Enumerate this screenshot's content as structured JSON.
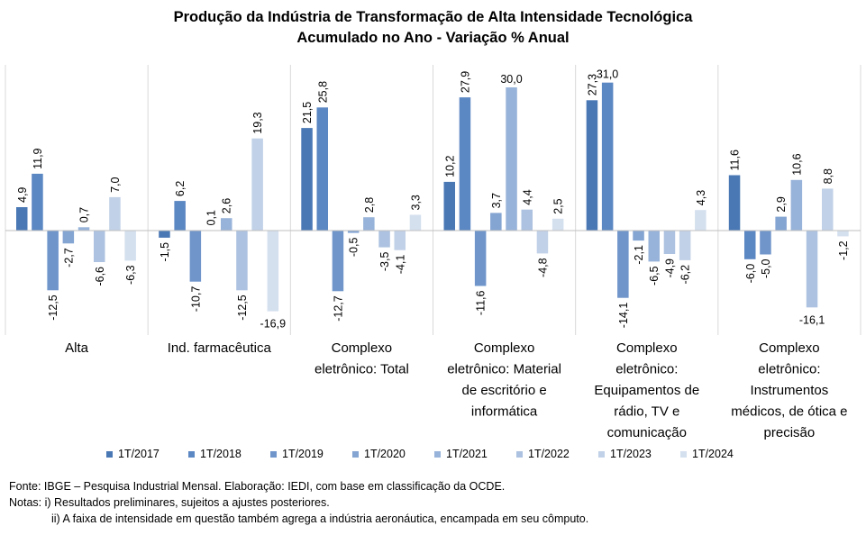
{
  "chart_data": {
    "type": "bar",
    "title": "Produção da Indústria de Transformação de Alta Intensidade Tecnológica",
    "subtitle": "Acumulado no Ano - Variação % Anual",
    "categories": [
      "Alta",
      "Ind. farmacêutica",
      "Complexo eletrônico: Total",
      "Complexo eletrônico: Material de escritório e informática",
      "Complexo eletrônico: Equipamentos de rádio, TV e comunicação",
      "Complexo eletrônico: Instrumentos médicos, de ótica e precisão"
    ],
    "category_label_lines": [
      [
        "Alta"
      ],
      [
        "Ind. farmacêutica"
      ],
      [
        "Complexo",
        "eletrônico: Total"
      ],
      [
        "Complexo",
        "eletrônico: Material",
        "de escritório e",
        "informática"
      ],
      [
        "Complexo",
        "eletrônico:",
        "Equipamentos de",
        "rádio, TV e",
        "comunicação"
      ],
      [
        "Complexo",
        "eletrônico:",
        "Instrumentos",
        "médicos, de ótica e",
        "precisão"
      ]
    ],
    "series": [
      {
        "name": "1T/2017",
        "color": "#4a78b5",
        "values": [
          4.9,
          -1.5,
          21.5,
          10.2,
          27.3,
          11.6
        ],
        "labels": [
          "4,9",
          "-1,5",
          "21,5",
          "10,2",
          "27,3",
          "11,6"
        ]
      },
      {
        "name": "1T/2018",
        "color": "#5b87c3",
        "values": [
          11.9,
          6.2,
          25.8,
          27.9,
          31.0,
          -6.0
        ],
        "labels": [
          "11,9",
          "6,2",
          "25,8",
          "27,9",
          "31,0",
          "-6,0"
        ]
      },
      {
        "name": "1T/2019",
        "color": "#6f95cb",
        "values": [
          -12.5,
          -10.7,
          -12.7,
          -11.6,
          -14.1,
          -5.0
        ],
        "labels": [
          "-12,5",
          "-10,7",
          "-12,7",
          "-11,6",
          "-14,1",
          "-5,0"
        ]
      },
      {
        "name": "1T/2020",
        "color": "#84a4d2",
        "values": [
          -2.7,
          0.1,
          -0.5,
          3.7,
          -2.1,
          2.9
        ],
        "labels": [
          "-2,7",
          "0,1",
          "-0,5",
          "3,7",
          "-2,1",
          "2,9"
        ]
      },
      {
        "name": "1T/2021",
        "color": "#98b3d9",
        "values": [
          0.7,
          2.6,
          2.8,
          30.0,
          -6.5,
          10.6
        ],
        "labels": [
          "0,7",
          "2,6",
          "2,8",
          "30,0",
          "-6,5",
          "10,6"
        ]
      },
      {
        "name": "1T/2022",
        "color": "#adc2e0",
        "values": [
          -6.6,
          -12.5,
          -3.5,
          4.4,
          -4.9,
          -16.1
        ],
        "labels": [
          "-6,6",
          "-12,5",
          "-3,5",
          "4,4",
          "-4,9",
          "-16,1"
        ]
      },
      {
        "name": "1T/2023",
        "color": "#c1d1e7",
        "values": [
          7.0,
          19.3,
          -4.1,
          -4.8,
          -6.2,
          8.8
        ],
        "labels": [
          "7,0",
          "19,3",
          "-4,1",
          "-4,8",
          "-6,2",
          "8,8"
        ]
      },
      {
        "name": "1T/2024",
        "color": "#d4e0ee",
        "values": [
          -6.3,
          -16.9,
          3.3,
          2.5,
          4.3,
          -1.2
        ],
        "labels": [
          "-6,3",
          "-16,9",
          "3,3",
          "2,5",
          "4,3",
          "-1,2"
        ]
      }
    ],
    "ylim": [
      -18,
      33
    ],
    "legend": "bottom",
    "grid": false,
    "category_separators": true,
    "value_label_rotation": "vertical for most labels"
  },
  "notes": {
    "fonte": "Fonte: IBGE – Pesquisa Industrial Mensal. Elaboração: IEDI, com base em classificação da OCDE.",
    "nota1": "Notas: i) Resultados preliminares, sujeitos a ajustes posteriores.",
    "nota2": "ii) A faixa de intensidade em questão também agrega a indústria aeronáutica, encampada em seu cômputo."
  }
}
